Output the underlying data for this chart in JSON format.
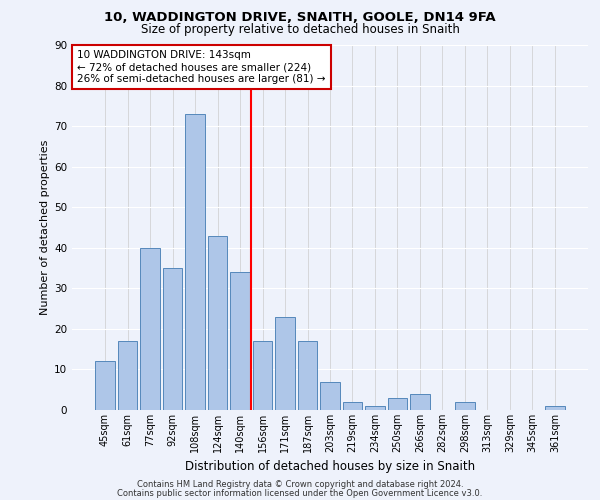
{
  "title1": "10, WADDINGTON DRIVE, SNAITH, GOOLE, DN14 9FA",
  "title2": "Size of property relative to detached houses in Snaith",
  "xlabel": "Distribution of detached houses by size in Snaith",
  "ylabel": "Number of detached properties",
  "categories": [
    "45sqm",
    "61sqm",
    "77sqm",
    "92sqm",
    "108sqm",
    "124sqm",
    "140sqm",
    "156sqm",
    "171sqm",
    "187sqm",
    "203sqm",
    "219sqm",
    "234sqm",
    "250sqm",
    "266sqm",
    "282sqm",
    "298sqm",
    "313sqm",
    "329sqm",
    "345sqm",
    "361sqm"
  ],
  "values": [
    12,
    17,
    40,
    35,
    73,
    43,
    34,
    17,
    23,
    17,
    7,
    2,
    1,
    3,
    4,
    0,
    2,
    0,
    0,
    0,
    1
  ],
  "bar_color": "#aec6e8",
  "bar_edge_color": "#5588bb",
  "background_color": "#eef2fb",
  "red_line_x": 6.5,
  "annotation_text": "10 WADDINGTON DRIVE: 143sqm\n← 72% of detached houses are smaller (224)\n26% of semi-detached houses are larger (81) →",
  "annotation_box_color": "#ffffff",
  "annotation_box_edge": "#cc0000",
  "footnote1": "Contains HM Land Registry data © Crown copyright and database right 2024.",
  "footnote2": "Contains public sector information licensed under the Open Government Licence v3.0.",
  "ylim": [
    0,
    90
  ],
  "yticks": [
    0,
    10,
    20,
    30,
    40,
    50,
    60,
    70,
    80,
    90
  ]
}
